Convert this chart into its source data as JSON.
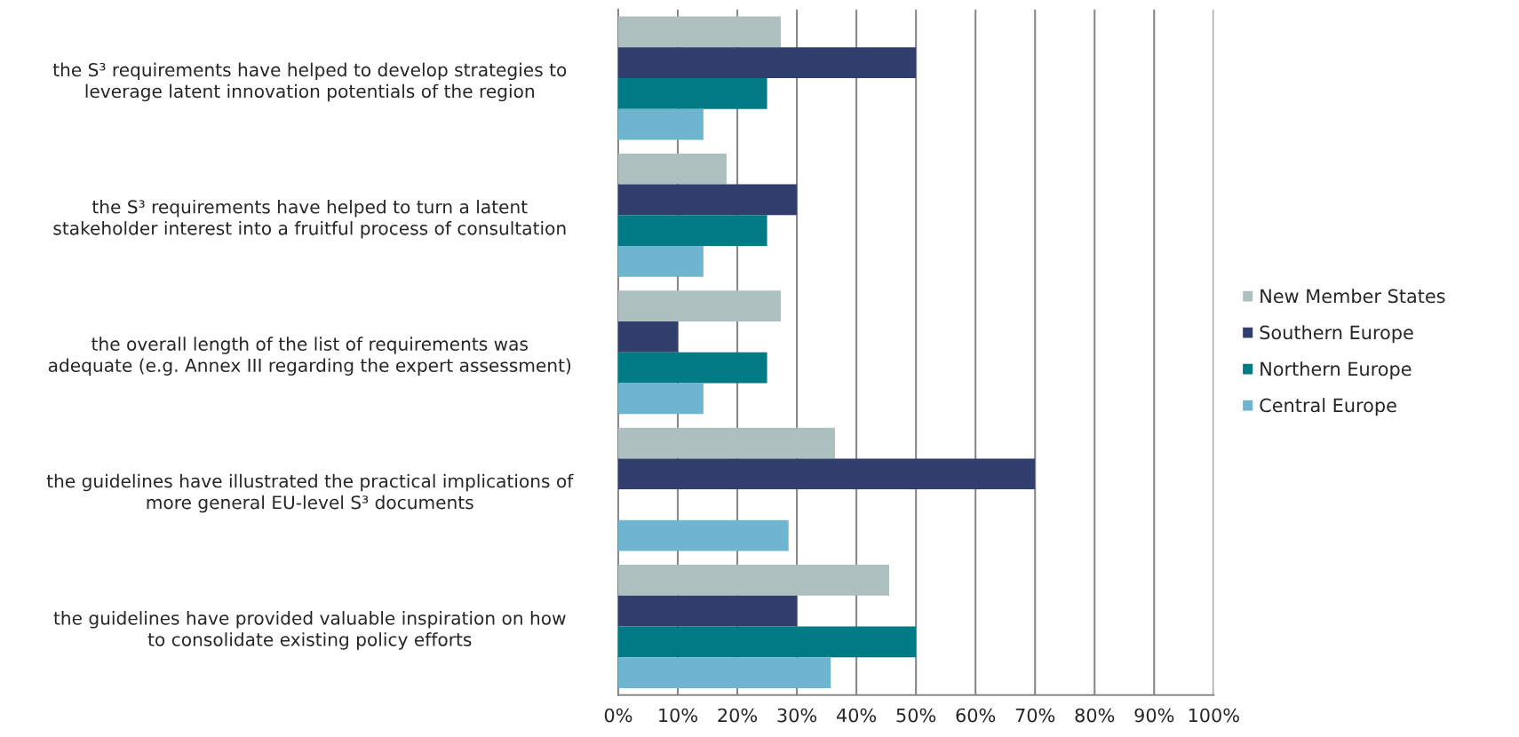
{
  "chart_data": {
    "type": "bar",
    "orientation": "horizontal",
    "categories": [
      "the S³ requirements have helped to develop strategies to\nleverage latent innovation potentials of the region",
      "the S³ requirements have helped to turn a latent\nstakeholder interest into a fruitful process of consultation",
      "the overall length of the list of requirements was\nadequate (e.g. Annex III regarding the expert assessment)",
      "the guidelines have illustrated the practical implications of\nmore general EU-level S³ documents",
      "the guidelines have provided valuable inspiration on how\nto consolidate existing policy efforts"
    ],
    "series": [
      {
        "name": "New Member States",
        "color": "#adbfbf",
        "values": [
          27.3,
          18.2,
          27.3,
          36.4,
          45.5
        ]
      },
      {
        "name": "Southern Europe",
        "color": "#303f6c",
        "values": [
          50,
          30,
          10,
          70,
          30
        ]
      },
      {
        "name": "Northern Europe",
        "color": "#007a84",
        "values": [
          25,
          25,
          25,
          null,
          50
        ]
      },
      {
        "name": "Central Europe",
        "color": "#6eb5cf",
        "values": [
          14.3,
          14.3,
          14.3,
          28.6,
          35.7
        ]
      }
    ],
    "xlim": [
      0,
      100
    ],
    "xticks": [
      {
        "value": 0,
        "label": "0%"
      },
      {
        "value": 10,
        "label": "10%"
      },
      {
        "value": 20,
        "label": "20%"
      },
      {
        "value": 30,
        "label": "30%"
      },
      {
        "value": 40,
        "label": "40%"
      },
      {
        "value": 50,
        "label": "50%"
      },
      {
        "value": 60,
        "label": "60%"
      },
      {
        "value": 70,
        "label": "70%"
      },
      {
        "value": 80,
        "label": "80%"
      },
      {
        "value": 90,
        "label": "90%"
      },
      {
        "value": 100,
        "label": "100%"
      }
    ],
    "grid": "x",
    "legend": "right"
  }
}
